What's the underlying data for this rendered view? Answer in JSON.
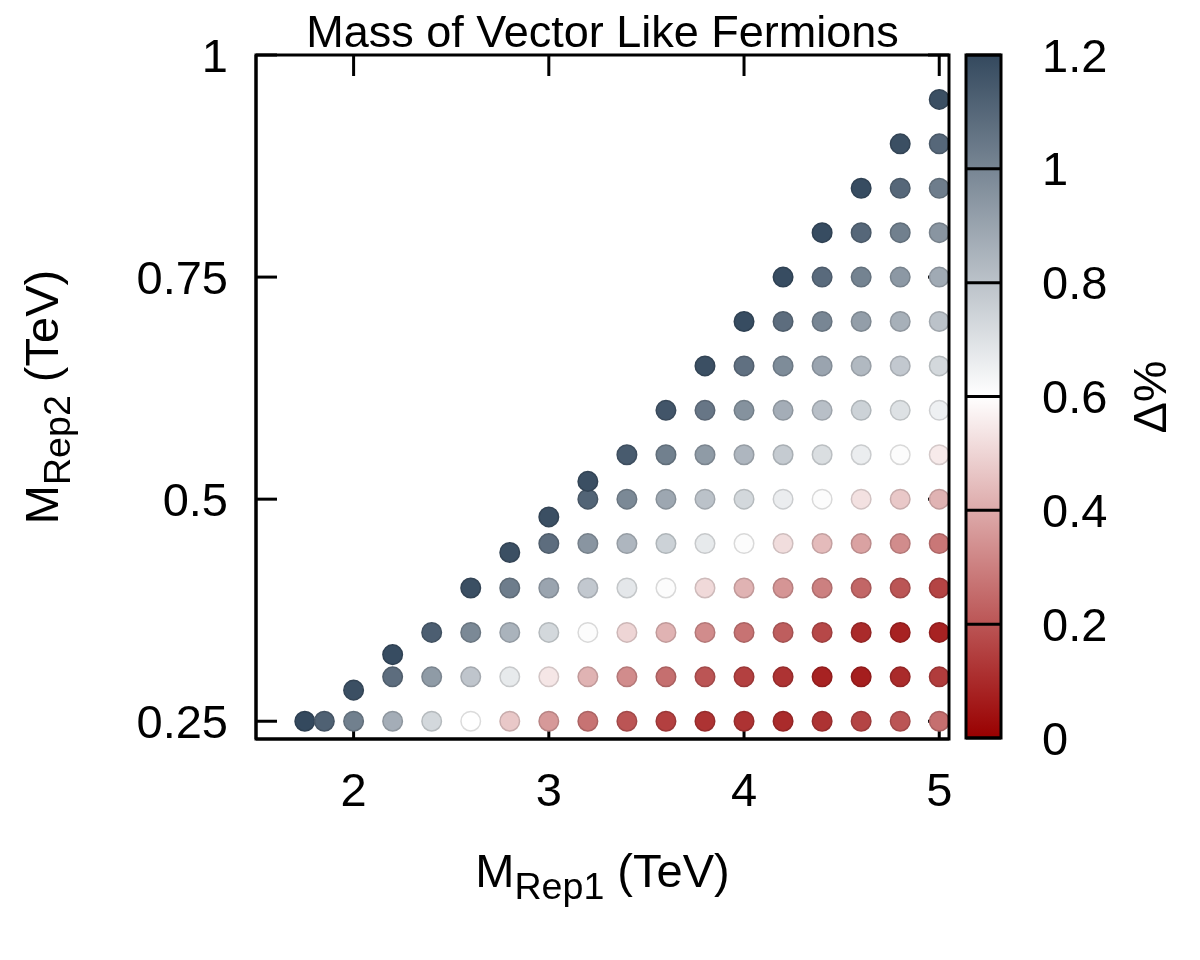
{
  "chart_data": {
    "type": "scatter",
    "title": "Mass of Vector Like Fermions",
    "xlabel": "M$_{Rep1}$ (TeV)",
    "ylabel": "M$_{Rep2}$ (TeV)",
    "clabel": "Δ%",
    "x": [
      1.75,
      1.85,
      2,
      2,
      2.2,
      2.2,
      2.2,
      2.4,
      2.4,
      2.4,
      2.6,
      2.6,
      2.6,
      2.6,
      2.8,
      2.8,
      2.8,
      2.8,
      2.8,
      3,
      3,
      3,
      3,
      3,
      3,
      3.2,
      3.2,
      3.2,
      3.2,
      3.2,
      3.2,
      3.2,
      3.4,
      3.4,
      3.4,
      3.4,
      3.4,
      3.4,
      3.4,
      3.6,
      3.6,
      3.6,
      3.6,
      3.6,
      3.6,
      3.6,
      3.6,
      3.8,
      3.8,
      3.8,
      3.8,
      3.8,
      3.8,
      3.8,
      3.8,
      3.8,
      4,
      4,
      4,
      4,
      4,
      4,
      4,
      4,
      4,
      4,
      4.2,
      4.2,
      4.2,
      4.2,
      4.2,
      4.2,
      4.2,
      4.2,
      4.2,
      4.2,
      4.2,
      4.4,
      4.4,
      4.4,
      4.4,
      4.4,
      4.4,
      4.4,
      4.4,
      4.4,
      4.4,
      4.4,
      4.4,
      4.6,
      4.6,
      4.6,
      4.6,
      4.6,
      4.6,
      4.6,
      4.6,
      4.6,
      4.6,
      4.6,
      4.6,
      4.6,
      4.8,
      4.8,
      4.8,
      4.8,
      4.8,
      4.8,
      4.8,
      4.8,
      4.8,
      4.8,
      4.8,
      4.8,
      4.8,
      4.8,
      5,
      5,
      5,
      5,
      5,
      5,
      5,
      5,
      5,
      5,
      5,
      5,
      5,
      5,
      5
    ],
    "values": [
      0.25,
      0.25,
      0.25,
      0.285,
      0.25,
      0.3,
      0.325,
      0.25,
      0.3,
      0.35,
      0.25,
      0.3,
      0.35,
      0.4,
      0.25,
      0.3,
      0.35,
      0.4,
      0.44,
      0.25,
      0.3,
      0.35,
      0.4,
      0.45,
      0.48,
      0.25,
      0.3,
      0.35,
      0.4,
      0.45,
      0.5,
      0.52,
      0.25,
      0.3,
      0.35,
      0.4,
      0.45,
      0.5,
      0.55,
      0.25,
      0.3,
      0.35,
      0.4,
      0.45,
      0.5,
      0.55,
      0.6,
      0.25,
      0.3,
      0.35,
      0.4,
      0.45,
      0.5,
      0.55,
      0.6,
      0.65,
      0.25,
      0.3,
      0.35,
      0.4,
      0.45,
      0.5,
      0.55,
      0.6,
      0.65,
      0.7,
      0.25,
      0.3,
      0.35,
      0.4,
      0.45,
      0.5,
      0.55,
      0.6,
      0.65,
      0.7,
      0.75,
      0.25,
      0.3,
      0.35,
      0.4,
      0.45,
      0.5,
      0.55,
      0.6,
      0.65,
      0.7,
      0.75,
      0.8,
      0.25,
      0.3,
      0.35,
      0.4,
      0.45,
      0.5,
      0.55,
      0.6,
      0.65,
      0.7,
      0.75,
      0.8,
      0.85,
      0.25,
      0.3,
      0.35,
      0.4,
      0.45,
      0.5,
      0.55,
      0.6,
      0.65,
      0.7,
      0.75,
      0.8,
      0.85,
      0.9,
      0.25,
      0.3,
      0.35,
      0.4,
      0.45,
      0.5,
      0.55,
      0.6,
      0.65,
      0.7,
      0.75,
      0.8,
      0.85,
      0.9,
      0.95
    ],
    "cvalues": [
      1.2,
      1.12,
      1.02,
      1.18,
      0.87,
      1.08,
      1.19,
      0.73,
      0.93,
      1.13,
      0.6,
      0.79,
      0.99,
      1.18,
      0.47,
      0.67,
      0.85,
      1.03,
      1.18,
      0.36,
      0.54,
      0.73,
      0.9,
      1.08,
      1.18,
      0.27,
      0.42,
      0.61,
      0.78,
      0.95,
      1.11,
      1.18,
      0.2,
      0.33,
      0.5,
      0.68,
      0.84,
      0.99,
      1.14,
      0.15,
      0.26,
      0.42,
      0.61,
      0.75,
      0.89,
      1.02,
      1.16,
      0.12,
      0.2,
      0.33,
      0.51,
      0.67,
      0.8,
      0.93,
      1.05,
      1.18,
      0.12,
      0.15,
      0.27,
      0.42,
      0.61,
      0.73,
      0.84,
      0.96,
      1.07,
      1.19,
      0.1,
      0.12,
      0.22,
      0.35,
      0.52,
      0.66,
      0.77,
      0.87,
      0.98,
      1.08,
      1.19,
      0.12,
      0.08,
      0.17,
      0.3,
      0.44,
      0.61,
      0.71,
      0.81,
      0.9,
      1.0,
      1.09,
      1.19,
      0.16,
      0.07,
      0.1,
      0.24,
      0.38,
      0.53,
      0.66,
      0.75,
      0.83,
      0.92,
      1.01,
      1.1,
      1.19,
      0.2,
      0.1,
      0.08,
      0.2,
      0.33,
      0.47,
      0.61,
      0.7,
      0.78,
      0.86,
      0.94,
      1.02,
      1.1,
      1.18,
      0.26,
      0.14,
      0.08,
      0.16,
      0.28,
      0.42,
      0.55,
      0.65,
      0.73,
      0.8,
      0.88,
      0.95,
      1.03,
      1.1,
      1.18
    ],
    "xlim": [
      1.5,
      5.05
    ],
    "xticks": [
      2,
      3,
      4,
      5
    ],
    "ylim": [
      0.23,
      1
    ],
    "yticks": [
      0.25,
      0.5,
      0.75,
      1
    ],
    "clim": [
      0,
      1.2
    ],
    "cticks": [
      0,
      0.2,
      0.4,
      0.6,
      0.8,
      1,
      1.2
    ],
    "marker": "circle"
  }
}
